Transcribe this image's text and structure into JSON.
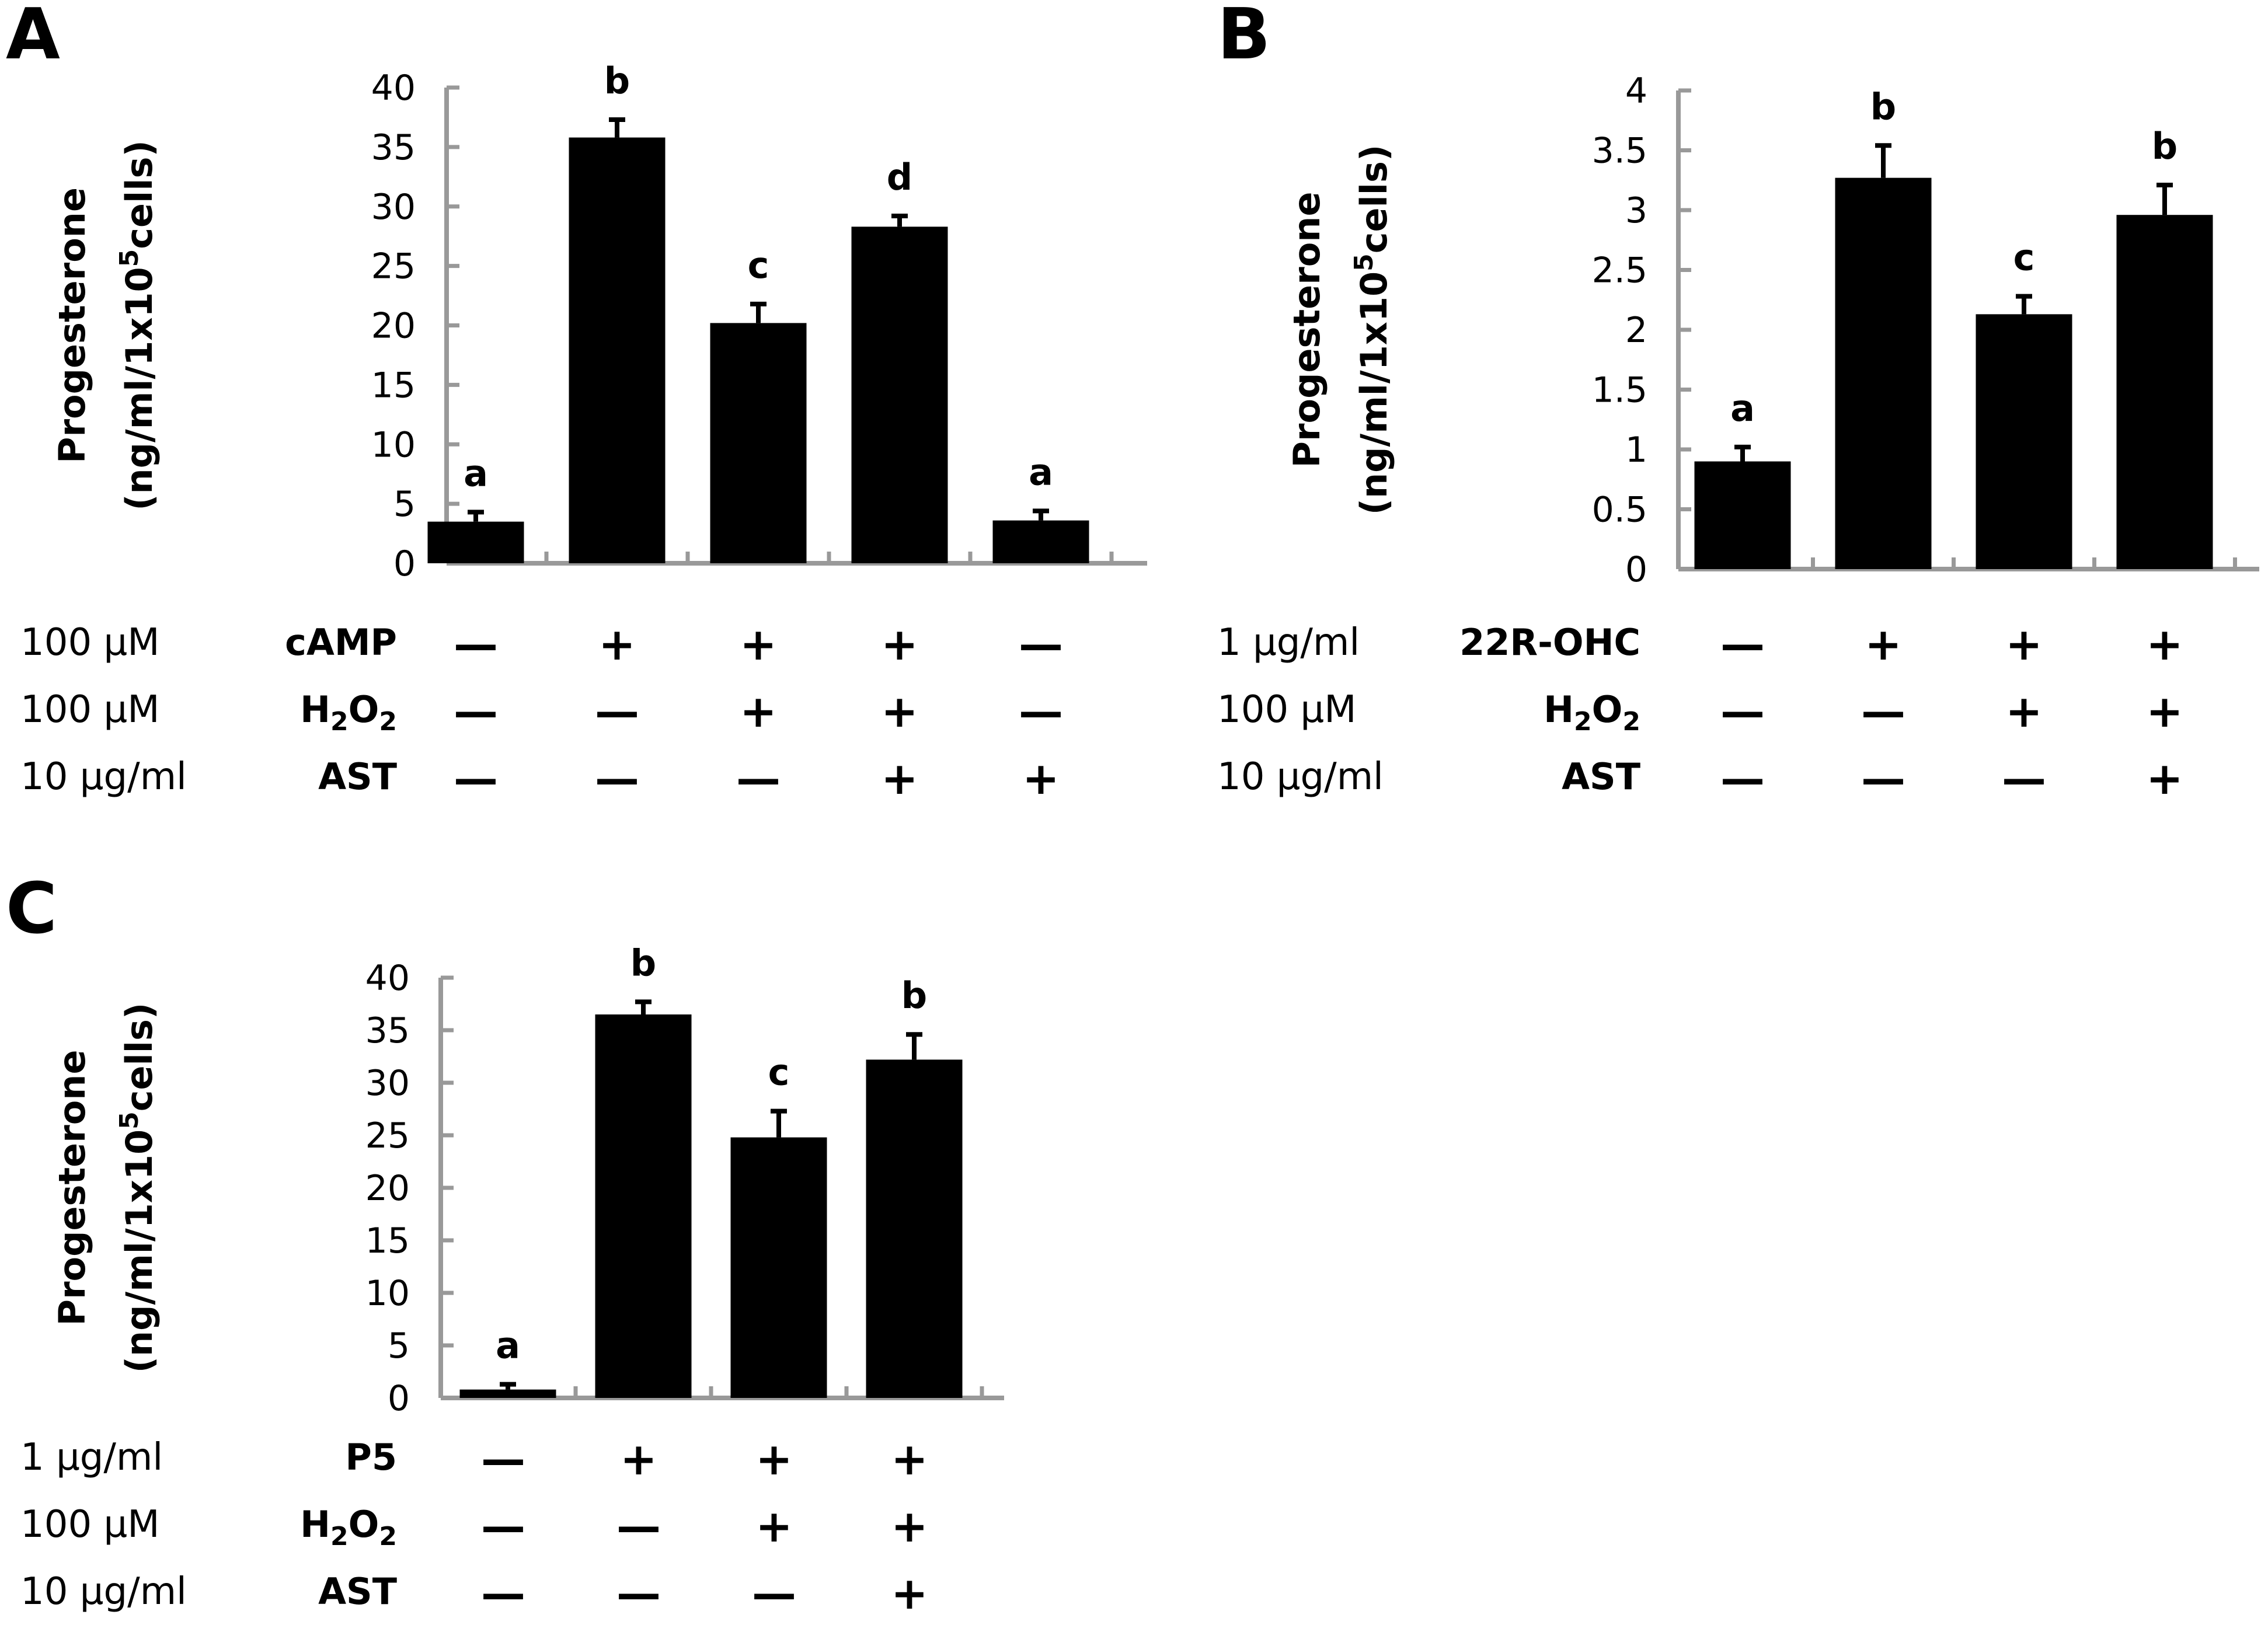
{
  "colors": {
    "bar": "#000000",
    "axis": "#999999",
    "text": "#000000"
  },
  "chart_data": [
    {
      "panel": "A",
      "type": "bar",
      "ylabel_line1": "Progesterone",
      "ylabel_line2": "(ng/ml/1x10",
      "ylabel_sup": "5",
      "ylabel_line2_end": "cells)",
      "ylim": [
        0,
        40
      ],
      "yticks": [
        "0",
        "5",
        "10",
        "15",
        "20",
        "25",
        "30",
        "35",
        "40"
      ],
      "ytick_values": [
        0,
        5,
        10,
        15,
        20,
        25,
        30,
        35,
        40
      ],
      "values": [
        3.5,
        35.8,
        20.2,
        28.3,
        3.6
      ],
      "errors": [
        0.8,
        1.5,
        1.6,
        0.9,
        0.8
      ],
      "significance": [
        "a",
        "b",
        "c",
        "d",
        "a"
      ],
      "treatments": [
        {
          "conc": "100 μM",
          "agent": "cAMP",
          "agent_sub": "",
          "agent_tail": "",
          "signs": [
            "—",
            "+",
            "+",
            "+",
            "—"
          ]
        },
        {
          "conc": "100 μM",
          "agent": "H",
          "agent_sub": "2",
          "agent_tail": "O",
          "agent_sub2": "2",
          "signs": [
            "—",
            "—",
            "+",
            "+",
            "—"
          ]
        },
        {
          "conc": "10 μg/ml",
          "agent": "AST",
          "agent_sub": "",
          "agent_tail": "",
          "signs": [
            "—",
            "—",
            "—",
            "+",
            "+"
          ]
        }
      ]
    },
    {
      "panel": "B",
      "type": "bar",
      "ylabel_line1": "Progesterone",
      "ylabel_line2": "(ng/ml/1x10",
      "ylabel_sup": "5",
      "ylabel_line2_end": "cells)",
      "ylim": [
        0,
        4
      ],
      "yticks": [
        "0",
        "0.5",
        "1",
        "1.5",
        "2",
        "2.5",
        "3",
        "3.5",
        "4"
      ],
      "ytick_values": [
        0,
        0.5,
        1,
        1.5,
        2,
        2.5,
        3,
        3.5,
        4
      ],
      "values": [
        0.9,
        3.27,
        2.13,
        2.96
      ],
      "errors": [
        0.12,
        0.27,
        0.15,
        0.25
      ],
      "significance": [
        "a",
        "b",
        "c",
        "b"
      ],
      "treatments": [
        {
          "conc": "1 μg/ml",
          "agent": "22R-OHC",
          "agent_sub": "",
          "agent_tail": "",
          "signs": [
            "—",
            "+",
            "+",
            "+"
          ]
        },
        {
          "conc": "100 μM",
          "agent": "H",
          "agent_sub": "2",
          "agent_tail": "O",
          "agent_sub2": "2",
          "signs": [
            "—",
            "—",
            "+",
            "+"
          ]
        },
        {
          "conc": "10 μg/ml",
          "agent": "AST",
          "agent_sub": "",
          "agent_tail": "",
          "signs": [
            "—",
            "—",
            "—",
            "+"
          ]
        }
      ]
    },
    {
      "panel": "C",
      "type": "bar",
      "ylabel_line1": "Progesterone",
      "ylabel_line2": "(ng/ml/1x10",
      "ylabel_sup": "5",
      "ylabel_line2_end": "cells)",
      "ylim": [
        0,
        40
      ],
      "yticks": [
        "0",
        "5",
        "10",
        "15",
        "20",
        "25",
        "30",
        "35",
        "40"
      ],
      "ytick_values": [
        0,
        5,
        10,
        15,
        20,
        25,
        30,
        35,
        40
      ],
      "values": [
        0.8,
        36.5,
        24.8,
        32.2
      ],
      "errors": [
        0.5,
        1.2,
        2.5,
        2.4
      ],
      "significance": [
        "a",
        "b",
        "c",
        "b"
      ],
      "treatments": [
        {
          "conc": "1 μg/ml",
          "agent": "P5",
          "agent_sub": "",
          "agent_tail": "",
          "signs": [
            "—",
            "+",
            "+",
            "+"
          ]
        },
        {
          "conc": "100 μM",
          "agent": "H",
          "agent_sub": "2",
          "agent_tail": "O",
          "agent_sub2": "2",
          "signs": [
            "—",
            "—",
            "+",
            "+"
          ]
        },
        {
          "conc": "10 μg/ml",
          "agent": "AST",
          "agent_sub": "",
          "agent_tail": "",
          "signs": [
            "—",
            "—",
            "—",
            "+"
          ]
        }
      ]
    }
  ]
}
